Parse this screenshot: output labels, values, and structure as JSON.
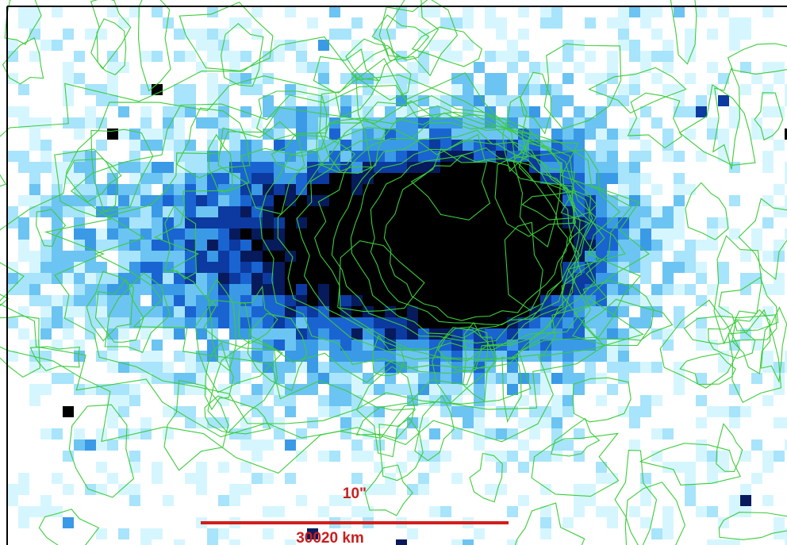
{
  "scale_bar": {
    "angular_label": "10\"",
    "distance_label": "30020 km"
  }
}
